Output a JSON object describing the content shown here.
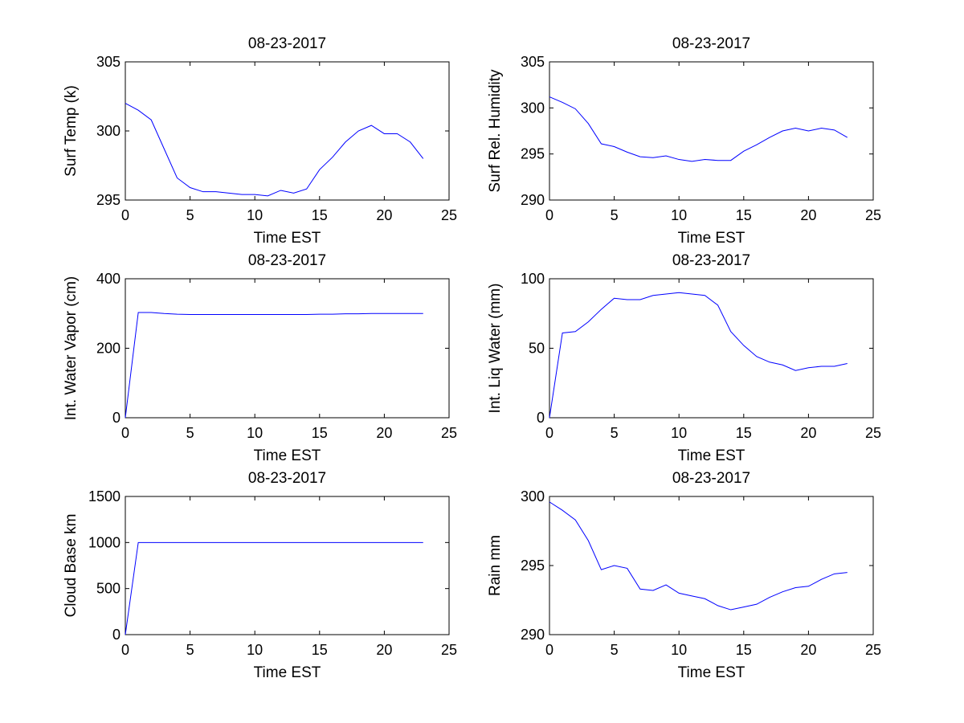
{
  "line_color": "#0000ff",
  "axis_color": "#000000",
  "chart_data": [
    {
      "type": "line",
      "title": "08-23-2017",
      "xlabel": "Time EST",
      "ylabel": "Surf Temp (k)",
      "xlim": [
        0,
        25
      ],
      "ylim": [
        295,
        305
      ],
      "xticks": [
        0,
        5,
        10,
        15,
        20,
        25
      ],
      "yticks": [
        295,
        300,
        305
      ],
      "x": [
        0,
        1,
        2,
        3,
        4,
        5,
        6,
        7,
        8,
        9,
        10,
        11,
        12,
        13,
        14,
        15,
        16,
        17,
        18,
        19,
        20,
        21,
        22,
        23
      ],
      "y": [
        302.0,
        301.5,
        300.8,
        298.7,
        296.6,
        295.9,
        295.6,
        295.6,
        295.5,
        295.4,
        295.4,
        295.3,
        295.7,
        295.5,
        295.8,
        297.2,
        298.1,
        299.2,
        300.0,
        300.4,
        299.8,
        299.8,
        299.2,
        298.0
      ]
    },
    {
      "type": "line",
      "title": "08-23-2017",
      "xlabel": "Time EST",
      "ylabel": "Surf Rel. Humidity",
      "xlim": [
        0,
        25
      ],
      "ylim": [
        290,
        305
      ],
      "xticks": [
        0,
        5,
        10,
        15,
        20,
        25
      ],
      "yticks": [
        290,
        295,
        300,
        305
      ],
      "x": [
        0,
        1,
        2,
        3,
        4,
        5,
        6,
        7,
        8,
        9,
        10,
        11,
        12,
        13,
        14,
        15,
        16,
        17,
        18,
        19,
        20,
        21,
        22,
        23
      ],
      "y": [
        301.2,
        300.6,
        299.9,
        298.3,
        296.1,
        295.8,
        295.2,
        294.7,
        294.6,
        294.8,
        294.4,
        294.2,
        294.4,
        294.3,
        294.3,
        295.3,
        296.0,
        296.8,
        297.5,
        297.8,
        297.5,
        297.8,
        297.6,
        296.8
      ]
    },
    {
      "type": "line",
      "title": "08-23-2017",
      "xlabel": "Time EST",
      "ylabel": "Int. Water Vapor (cm)",
      "xlim": [
        0,
        25
      ],
      "ylim": [
        0,
        400
      ],
      "xticks": [
        0,
        5,
        10,
        15,
        20,
        25
      ],
      "yticks": [
        0,
        200,
        400
      ],
      "x": [
        0,
        1,
        2,
        3,
        4,
        5,
        6,
        7,
        8,
        9,
        10,
        11,
        12,
        13,
        14,
        15,
        16,
        17,
        18,
        19,
        20,
        21,
        22,
        23
      ],
      "y": [
        0,
        303,
        303,
        300,
        298,
        297,
        297,
        297,
        297,
        297,
        297,
        297,
        297,
        297,
        297,
        298,
        298,
        299,
        299,
        300,
        300,
        300,
        300,
        300
      ]
    },
    {
      "type": "line",
      "title": "08-23-2017",
      "xlabel": "Time EST",
      "ylabel": "Int. Liq Water (mm)",
      "xlim": [
        0,
        25
      ],
      "ylim": [
        0,
        100
      ],
      "xticks": [
        0,
        5,
        10,
        15,
        20,
        25
      ],
      "yticks": [
        0,
        50,
        100
      ],
      "x": [
        0,
        1,
        2,
        3,
        4,
        5,
        6,
        7,
        8,
        9,
        10,
        11,
        12,
        13,
        14,
        15,
        16,
        17,
        18,
        19,
        20,
        21,
        22,
        23
      ],
      "y": [
        0,
        61,
        62,
        69,
        78,
        86,
        85,
        85,
        88,
        89,
        90,
        89,
        88,
        81,
        62,
        52,
        44,
        40,
        38,
        34,
        36,
        37,
        37,
        39
      ]
    },
    {
      "type": "line",
      "title": "08-23-2017",
      "xlabel": "Time EST",
      "ylabel": "Cloud Base km",
      "xlim": [
        0,
        25
      ],
      "ylim": [
        0,
        1500
      ],
      "xticks": [
        0,
        5,
        10,
        15,
        20,
        25
      ],
      "yticks": [
        0,
        500,
        1000,
        1500
      ],
      "x": [
        0,
        1,
        2,
        3,
        4,
        5,
        6,
        7,
        8,
        9,
        10,
        11,
        12,
        13,
        14,
        15,
        16,
        17,
        18,
        19,
        20,
        21,
        22,
        23
      ],
      "y": [
        0,
        1000,
        1000,
        1000,
        1000,
        1000,
        1000,
        1000,
        1000,
        1000,
        1000,
        1000,
        1000,
        1000,
        1000,
        1000,
        1000,
        1000,
        1000,
        1000,
        1000,
        1000,
        1000,
        1000
      ]
    },
    {
      "type": "line",
      "title": "08-23-2017",
      "xlabel": "Time EST",
      "ylabel": "Rain mm",
      "xlim": [
        0,
        25
      ],
      "ylim": [
        290,
        300
      ],
      "xticks": [
        0,
        5,
        10,
        15,
        20,
        25
      ],
      "yticks": [
        290,
        295,
        300
      ],
      "x": [
        0,
        1,
        2,
        3,
        4,
        5,
        6,
        7,
        8,
        9,
        10,
        11,
        12,
        13,
        14,
        15,
        16,
        17,
        18,
        19,
        20,
        21,
        22,
        23
      ],
      "y": [
        299.6,
        299.0,
        298.3,
        296.8,
        294.7,
        295.0,
        294.8,
        293.3,
        293.2,
        293.6,
        293.0,
        292.8,
        292.6,
        292.1,
        291.8,
        292.0,
        292.2,
        292.7,
        293.1,
        293.4,
        293.5,
        294.0,
        294.4,
        294.5
      ]
    }
  ]
}
